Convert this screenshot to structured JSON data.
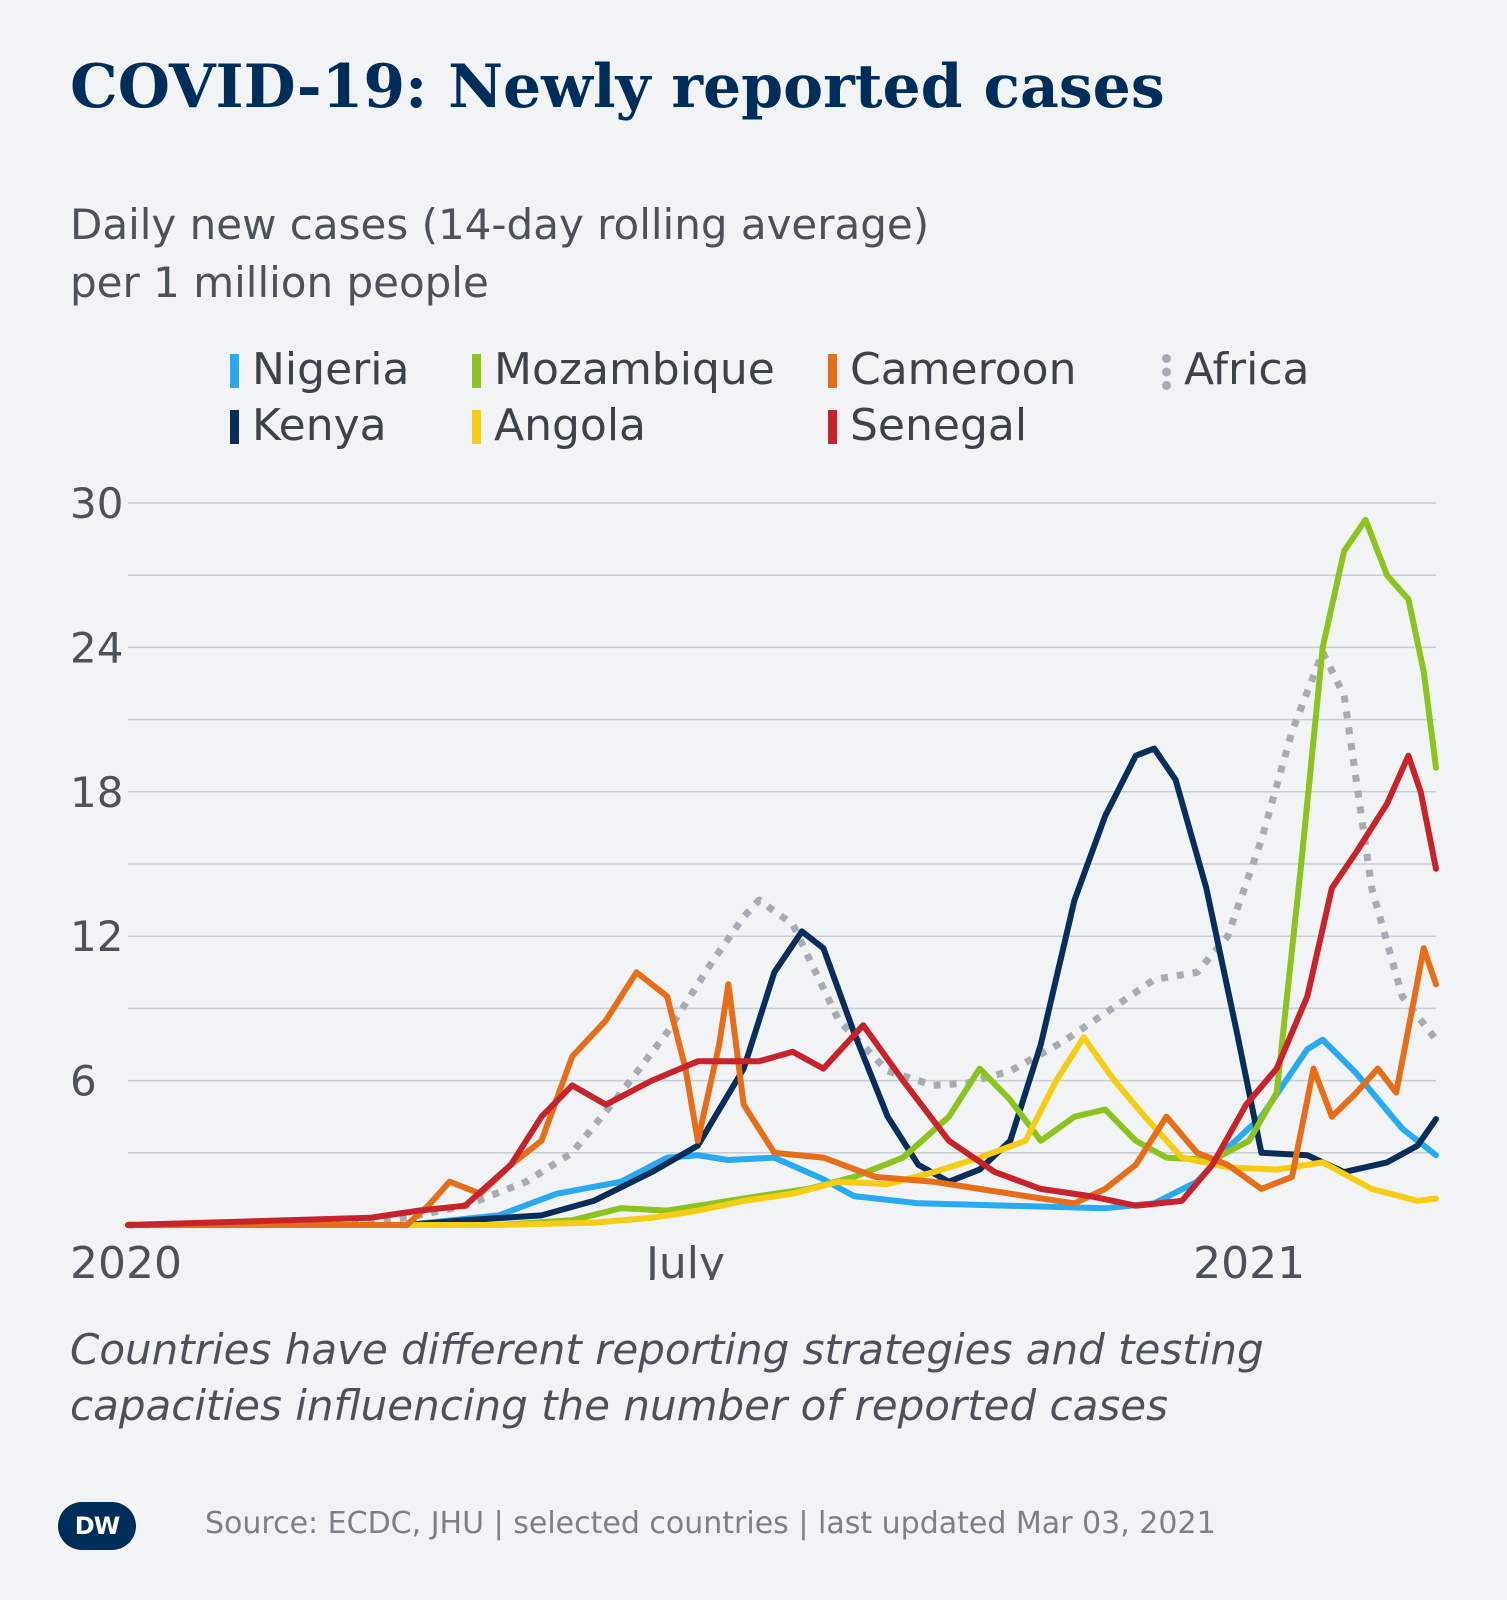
{
  "title": "COVID-19: Newly reported cases",
  "subtitle_line1": "Daily new cases (14-day rolling average)",
  "subtitle_line2": "per 1 million people",
  "footnote_line1": "Countries have different reporting strategies and testing",
  "footnote_line2": "capacities influencing the number of reported cases",
  "source": "Source: ECDC, JHU | selected countries | last updated Mar 03, 2021",
  "logo_text": "DW",
  "colors": {
    "Nigeria": "#28aaf0",
    "Kenya": "#0a2d5a",
    "Mozambique": "#8cc31e",
    "Angola": "#f5cd14",
    "Cameroon": "#e66e19",
    "Senegal": "#c8232d",
    "Africa": "#a5acb4",
    "grid": "#c9ced3",
    "title": "#002d5a"
  },
  "legend": [
    {
      "name": "Nigeria"
    },
    {
      "name": "Kenya"
    },
    {
      "name": "Mozambique"
    },
    {
      "name": "Angola"
    },
    {
      "name": "Cameroon"
    },
    {
      "name": "Senegal"
    },
    {
      "name": "Africa",
      "style": "dotted"
    }
  ],
  "chart_data": {
    "type": "line",
    "title": "COVID-19: Newly reported cases",
    "ylabel": "Daily new cases (14-day rolling average) per 1 million people",
    "xlim": [
      "2020-01-01",
      "2021-03-03"
    ],
    "ylim": [
      0,
      30
    ],
    "yticks": [
      6,
      12,
      18,
      24,
      30
    ],
    "gridlines": [
      3,
      6,
      9,
      12,
      15,
      18,
      21,
      24,
      27,
      30
    ],
    "xticks": [
      {
        "date": "2020-01-01",
        "label": "2020"
      },
      {
        "date": "2020-07-01",
        "label": "July"
      },
      {
        "date": "2021-01-01",
        "label": "2021"
      }
    ],
    "legend_position": "top",
    "series": [
      {
        "name": "Africa",
        "style": "dotted",
        "points": [
          [
            "2020-01-01",
            0
          ],
          [
            "2020-03-15",
            0.05
          ],
          [
            "2020-04-01",
            0.3
          ],
          [
            "2020-04-20",
            0.8
          ],
          [
            "2020-05-10",
            1.8
          ],
          [
            "2020-05-25",
            3
          ],
          [
            "2020-06-10",
            5.5
          ],
          [
            "2020-06-25",
            8
          ],
          [
            "2020-07-10",
            11
          ],
          [
            "2020-07-20",
            12.8
          ],
          [
            "2020-07-25",
            13.5
          ],
          [
            "2020-08-05",
            12.5
          ],
          [
            "2020-08-20",
            8.5
          ],
          [
            "2020-09-05",
            6.4
          ],
          [
            "2020-09-20",
            5.8
          ],
          [
            "2020-10-01",
            5.9
          ],
          [
            "2020-10-15",
            6.4
          ],
          [
            "2020-11-01",
            7.6
          ],
          [
            "2020-11-15",
            8.8
          ],
          [
            "2020-12-01",
            10.2
          ],
          [
            "2020-12-15",
            10.5
          ],
          [
            "2020-12-25",
            12
          ],
          [
            "2021-01-05",
            16
          ],
          [
            "2021-01-15",
            20.5
          ],
          [
            "2021-01-25",
            23.8
          ],
          [
            "2021-02-01",
            22
          ],
          [
            "2021-02-10",
            14
          ],
          [
            "2021-02-20",
            9.5
          ],
          [
            "2021-03-03",
            7.7
          ]
        ]
      },
      {
        "name": "Nigeria",
        "points": [
          [
            "2020-01-01",
            0
          ],
          [
            "2020-04-01",
            0
          ],
          [
            "2020-05-01",
            0.4
          ],
          [
            "2020-05-20",
            1.3
          ],
          [
            "2020-06-10",
            1.8
          ],
          [
            "2020-06-25",
            2.8
          ],
          [
            "2020-07-05",
            2.9
          ],
          [
            "2020-07-15",
            2.7
          ],
          [
            "2020-07-30",
            2.8
          ],
          [
            "2020-08-15",
            1.9
          ],
          [
            "2020-08-25",
            1.2
          ],
          [
            "2020-09-15",
            0.9
          ],
          [
            "2020-10-15",
            0.8
          ],
          [
            "2020-11-15",
            0.7
          ],
          [
            "2020-12-01",
            0.9
          ],
          [
            "2020-12-15",
            1.8
          ],
          [
            "2020-12-25",
            3.2
          ],
          [
            "2021-01-05",
            4.5
          ],
          [
            "2021-01-20",
            7.3
          ],
          [
            "2021-01-25",
            7.7
          ],
          [
            "2021-02-05",
            6.3
          ],
          [
            "2021-02-20",
            4
          ],
          [
            "2021-03-03",
            2.9
          ]
        ]
      },
      {
        "name": "Kenya",
        "points": [
          [
            "2020-01-01",
            0
          ],
          [
            "2020-04-01",
            0
          ],
          [
            "2020-04-20",
            0.2
          ],
          [
            "2020-05-15",
            0.4
          ],
          [
            "2020-06-01",
            1
          ],
          [
            "2020-06-20",
            2.2
          ],
          [
            "2020-07-05",
            3.3
          ],
          [
            "2020-07-20",
            6.5
          ],
          [
            "2020-07-30",
            10.5
          ],
          [
            "2020-08-08",
            12.2
          ],
          [
            "2020-08-15",
            11.5
          ],
          [
            "2020-08-25",
            8
          ],
          [
            "2020-09-05",
            4.5
          ],
          [
            "2020-09-15",
            2.5
          ],
          [
            "2020-09-25",
            1.8
          ],
          [
            "2020-10-05",
            2.3
          ],
          [
            "2020-10-15",
            3.5
          ],
          [
            "2020-10-25",
            7.5
          ],
          [
            "2020-11-05",
            13.5
          ],
          [
            "2020-11-15",
            17
          ],
          [
            "2020-11-25",
            19.5
          ],
          [
            "2020-12-01",
            19.8
          ],
          [
            "2020-12-08",
            18.5
          ],
          [
            "2020-12-18",
            14
          ],
          [
            "2020-12-28",
            8
          ],
          [
            "2021-01-05",
            3
          ],
          [
            "2021-01-20",
            2.9
          ],
          [
            "2021-02-01",
            2.2
          ],
          [
            "2021-02-15",
            2.6
          ],
          [
            "2021-02-25",
            3.3
          ],
          [
            "2021-03-03",
            4.4
          ]
        ]
      },
      {
        "name": "Mozambique",
        "points": [
          [
            "2020-01-01",
            0
          ],
          [
            "2020-05-01",
            0
          ],
          [
            "2020-05-25",
            0.2
          ],
          [
            "2020-06-10",
            0.7
          ],
          [
            "2020-06-25",
            0.6
          ],
          [
            "2020-07-10",
            0.9
          ],
          [
            "2020-07-25",
            1.2
          ],
          [
            "2020-08-10",
            1.5
          ],
          [
            "2020-08-25",
            2
          ],
          [
            "2020-09-10",
            2.8
          ],
          [
            "2020-09-25",
            4.5
          ],
          [
            "2020-10-05",
            6.5
          ],
          [
            "2020-10-15",
            5.2
          ],
          [
            "2020-10-25",
            3.5
          ],
          [
            "2020-11-05",
            4.5
          ],
          [
            "2020-11-15",
            4.8
          ],
          [
            "2020-11-25",
            3.5
          ],
          [
            "2020-12-05",
            2.8
          ],
          [
            "2020-12-20",
            2.7
          ],
          [
            "2021-01-01",
            3.5
          ],
          [
            "2021-01-10",
            5.5
          ],
          [
            "2021-01-18",
            15
          ],
          [
            "2021-01-25",
            24
          ],
          [
            "2021-02-01",
            28
          ],
          [
            "2021-02-08",
            29.3
          ],
          [
            "2021-02-15",
            27
          ],
          [
            "2021-02-22",
            26
          ],
          [
            "2021-02-27",
            23
          ],
          [
            "2021-03-03",
            19
          ]
        ]
      },
      {
        "name": "Angola",
        "points": [
          [
            "2020-01-01",
            0
          ],
          [
            "2020-05-01",
            0
          ],
          [
            "2020-06-01",
            0.1
          ],
          [
            "2020-06-20",
            0.3
          ],
          [
            "2020-07-05",
            0.6
          ],
          [
            "2020-07-20",
            1
          ],
          [
            "2020-08-05",
            1.3
          ],
          [
            "2020-08-20",
            1.8
          ],
          [
            "2020-09-05",
            1.7
          ],
          [
            "2020-09-20",
            2.2
          ],
          [
            "2020-10-05",
            2.8
          ],
          [
            "2020-10-20",
            3.5
          ],
          [
            "2020-10-30",
            6
          ],
          [
            "2020-11-08",
            7.8
          ],
          [
            "2020-11-18",
            6
          ],
          [
            "2020-11-28",
            4.5
          ],
          [
            "2020-12-10",
            2.8
          ],
          [
            "2020-12-25",
            2.4
          ],
          [
            "2021-01-10",
            2.3
          ],
          [
            "2021-01-25",
            2.6
          ],
          [
            "2021-02-10",
            1.5
          ],
          [
            "2021-02-25",
            1
          ],
          [
            "2021-03-03",
            1.1
          ]
        ]
      },
      {
        "name": "Cameroon",
        "points": [
          [
            "2020-01-01",
            0
          ],
          [
            "2020-04-01",
            0
          ],
          [
            "2020-04-08",
            0.8
          ],
          [
            "2020-04-15",
            1.8
          ],
          [
            "2020-04-25",
            1.3
          ],
          [
            "2020-05-05",
            2.5
          ],
          [
            "2020-05-15",
            3.5
          ],
          [
            "2020-05-25",
            7
          ],
          [
            "2020-06-05",
            8.5
          ],
          [
            "2020-06-15",
            10.5
          ],
          [
            "2020-06-25",
            9.5
          ],
          [
            "2020-07-01",
            6.5
          ],
          [
            "2020-07-05",
            3.5
          ],
          [
            "2020-07-12",
            7.5
          ],
          [
            "2020-07-15",
            10
          ],
          [
            "2020-07-20",
            5
          ],
          [
            "2020-07-30",
            3
          ],
          [
            "2020-08-15",
            2.8
          ],
          [
            "2020-09-01",
            2
          ],
          [
            "2020-09-20",
            1.8
          ],
          [
            "2020-10-05",
            1.5
          ],
          [
            "2020-10-20",
            1.2
          ],
          [
            "2020-11-05",
            0.9
          ],
          [
            "2020-11-15",
            1.5
          ],
          [
            "2020-11-25",
            2.5
          ],
          [
            "2020-12-05",
            4.5
          ],
          [
            "2020-12-15",
            3
          ],
          [
            "2020-12-25",
            2.5
          ],
          [
            "2021-01-05",
            1.5
          ],
          [
            "2021-01-15",
            2
          ],
          [
            "2021-01-22",
            6.5
          ],
          [
            "2021-01-28",
            4.5
          ],
          [
            "2021-02-05",
            5.5
          ],
          [
            "2021-02-12",
            6.5
          ],
          [
            "2021-02-18",
            5.5
          ],
          [
            "2021-02-24",
            9.5
          ],
          [
            "2021-02-27",
            11.5
          ],
          [
            "2021-03-03",
            10
          ]
        ]
      },
      {
        "name": "Senegal",
        "points": [
          [
            "2020-01-01",
            0
          ],
          [
            "2020-03-20",
            0.3
          ],
          [
            "2020-04-05",
            0.6
          ],
          [
            "2020-04-20",
            0.8
          ],
          [
            "2020-05-05",
            2.5
          ],
          [
            "2020-05-15",
            4.5
          ],
          [
            "2020-05-25",
            5.8
          ],
          [
            "2020-06-05",
            5
          ],
          [
            "2020-06-20",
            6
          ],
          [
            "2020-07-05",
            6.8
          ],
          [
            "2020-07-25",
            6.8
          ],
          [
            "2020-08-05",
            7.2
          ],
          [
            "2020-08-15",
            6.5
          ],
          [
            "2020-08-28",
            8.3
          ],
          [
            "2020-09-10",
            6
          ],
          [
            "2020-09-25",
            3.5
          ],
          [
            "2020-10-10",
            2.2
          ],
          [
            "2020-10-25",
            1.5
          ],
          [
            "2020-11-10",
            1.2
          ],
          [
            "2020-11-25",
            0.8
          ],
          [
            "2020-12-10",
            1
          ],
          [
            "2020-12-20",
            2.5
          ],
          [
            "2020-12-31",
            5
          ],
          [
            "2021-01-10",
            6.5
          ],
          [
            "2021-01-20",
            9.5
          ],
          [
            "2021-01-28",
            14
          ],
          [
            "2021-02-05",
            15.5
          ],
          [
            "2021-02-15",
            17.5
          ],
          [
            "2021-02-22",
            19.5
          ],
          [
            "2021-02-26",
            18
          ],
          [
            "2021-03-03",
            14.8
          ]
        ]
      }
    ]
  }
}
